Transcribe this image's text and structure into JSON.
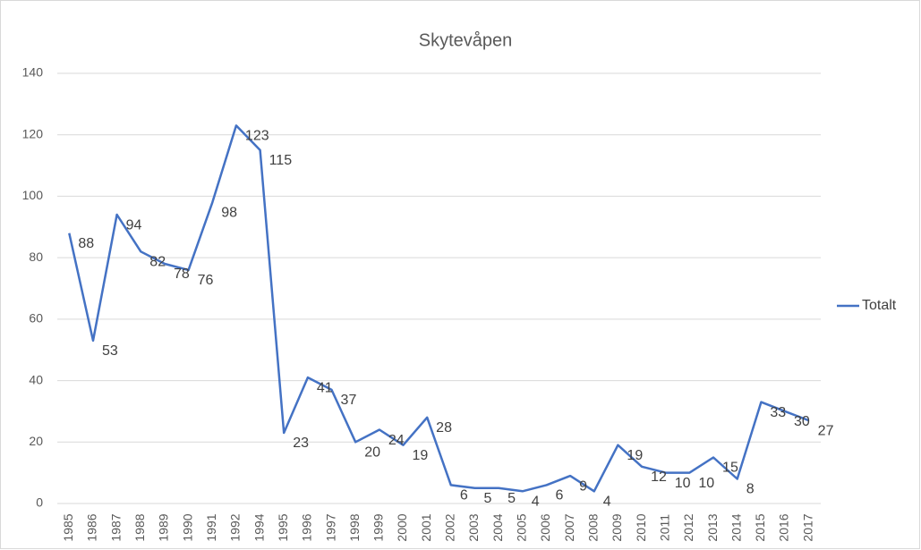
{
  "chart_data": {
    "type": "line",
    "title": "Skytevåpen",
    "categories": [
      "1985",
      "1986",
      "1987",
      "1988",
      "1989",
      "1990",
      "1991",
      "1992",
      "1994",
      "1995",
      "1996",
      "1997",
      "1998",
      "1999",
      "2000",
      "2001",
      "2002",
      "2003",
      "2004",
      "2005",
      "2006",
      "2007",
      "2008",
      "2009",
      "2010",
      "2011",
      "2012",
      "2013",
      "2014",
      "2015",
      "2016",
      "2017"
    ],
    "series": [
      {
        "name": "Totalt",
        "color": "#4472c4",
        "values": [
          88,
          53,
          94,
          82,
          78,
          76,
          98,
          123,
          115,
          23,
          41,
          37,
          20,
          24,
          19,
          28,
          6,
          5,
          5,
          4,
          6,
          9,
          4,
          19,
          12,
          10,
          10,
          15,
          8,
          33,
          30,
          27
        ]
      }
    ],
    "ylim": [
      0,
      140
    ],
    "yticks": [
      0,
      20,
      40,
      60,
      80,
      100,
      120,
      140
    ],
    "grid": true,
    "legend": "right"
  }
}
